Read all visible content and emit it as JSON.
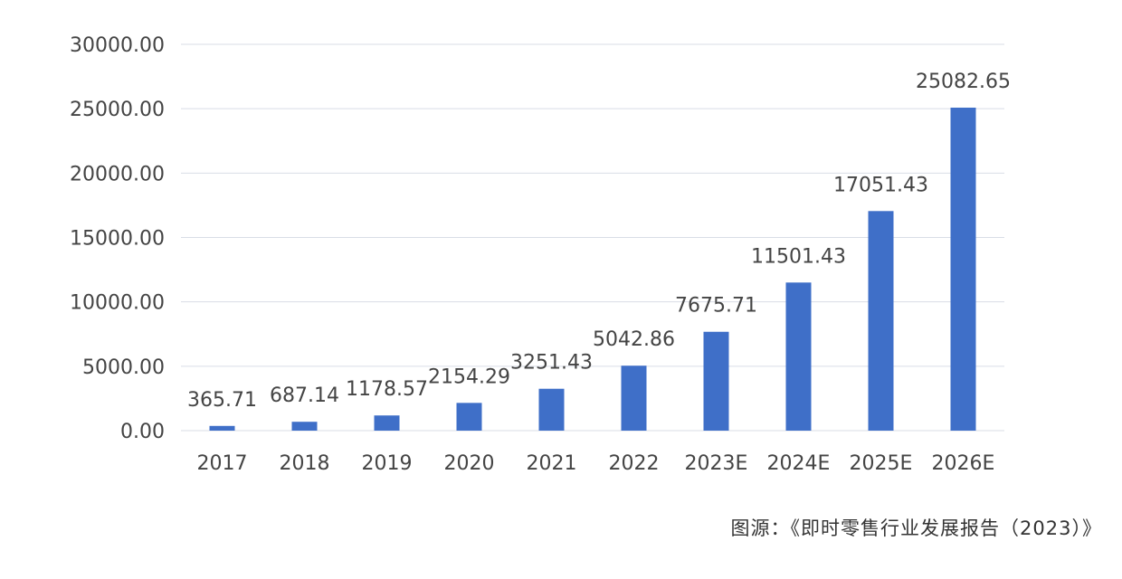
{
  "chart_data": {
    "type": "bar",
    "categories": [
      "2017",
      "2018",
      "2019",
      "2020",
      "2021",
      "2022",
      "2023E",
      "2024E",
      "2025E",
      "2026E"
    ],
    "values": [
      365.71,
      687.14,
      1178.57,
      2154.29,
      3251.43,
      5042.86,
      7675.71,
      11501.43,
      17051.43,
      25082.65
    ],
    "data_labels": [
      "365.71",
      "687.14",
      "1178.57",
      "2154.29",
      "3251.43",
      "5042.86",
      "7675.71",
      "11501.43",
      "17051.43",
      "25082.65"
    ],
    "y_ticks": [
      0,
      5000,
      10000,
      15000,
      20000,
      25000,
      30000
    ],
    "y_tick_labels": [
      "0.00",
      "5000.00",
      "10000.00",
      "15000.00",
      "20000.00",
      "25000.00",
      "30000.00"
    ],
    "ylim": [
      0,
      30000
    ],
    "grid": true,
    "legend": "none",
    "bar_color": "#3f6fc8",
    "grid_color": "#d9dde6",
    "text_color": "#444444"
  },
  "source_text": "图源：《即时零售行业发展报告（2023）》"
}
